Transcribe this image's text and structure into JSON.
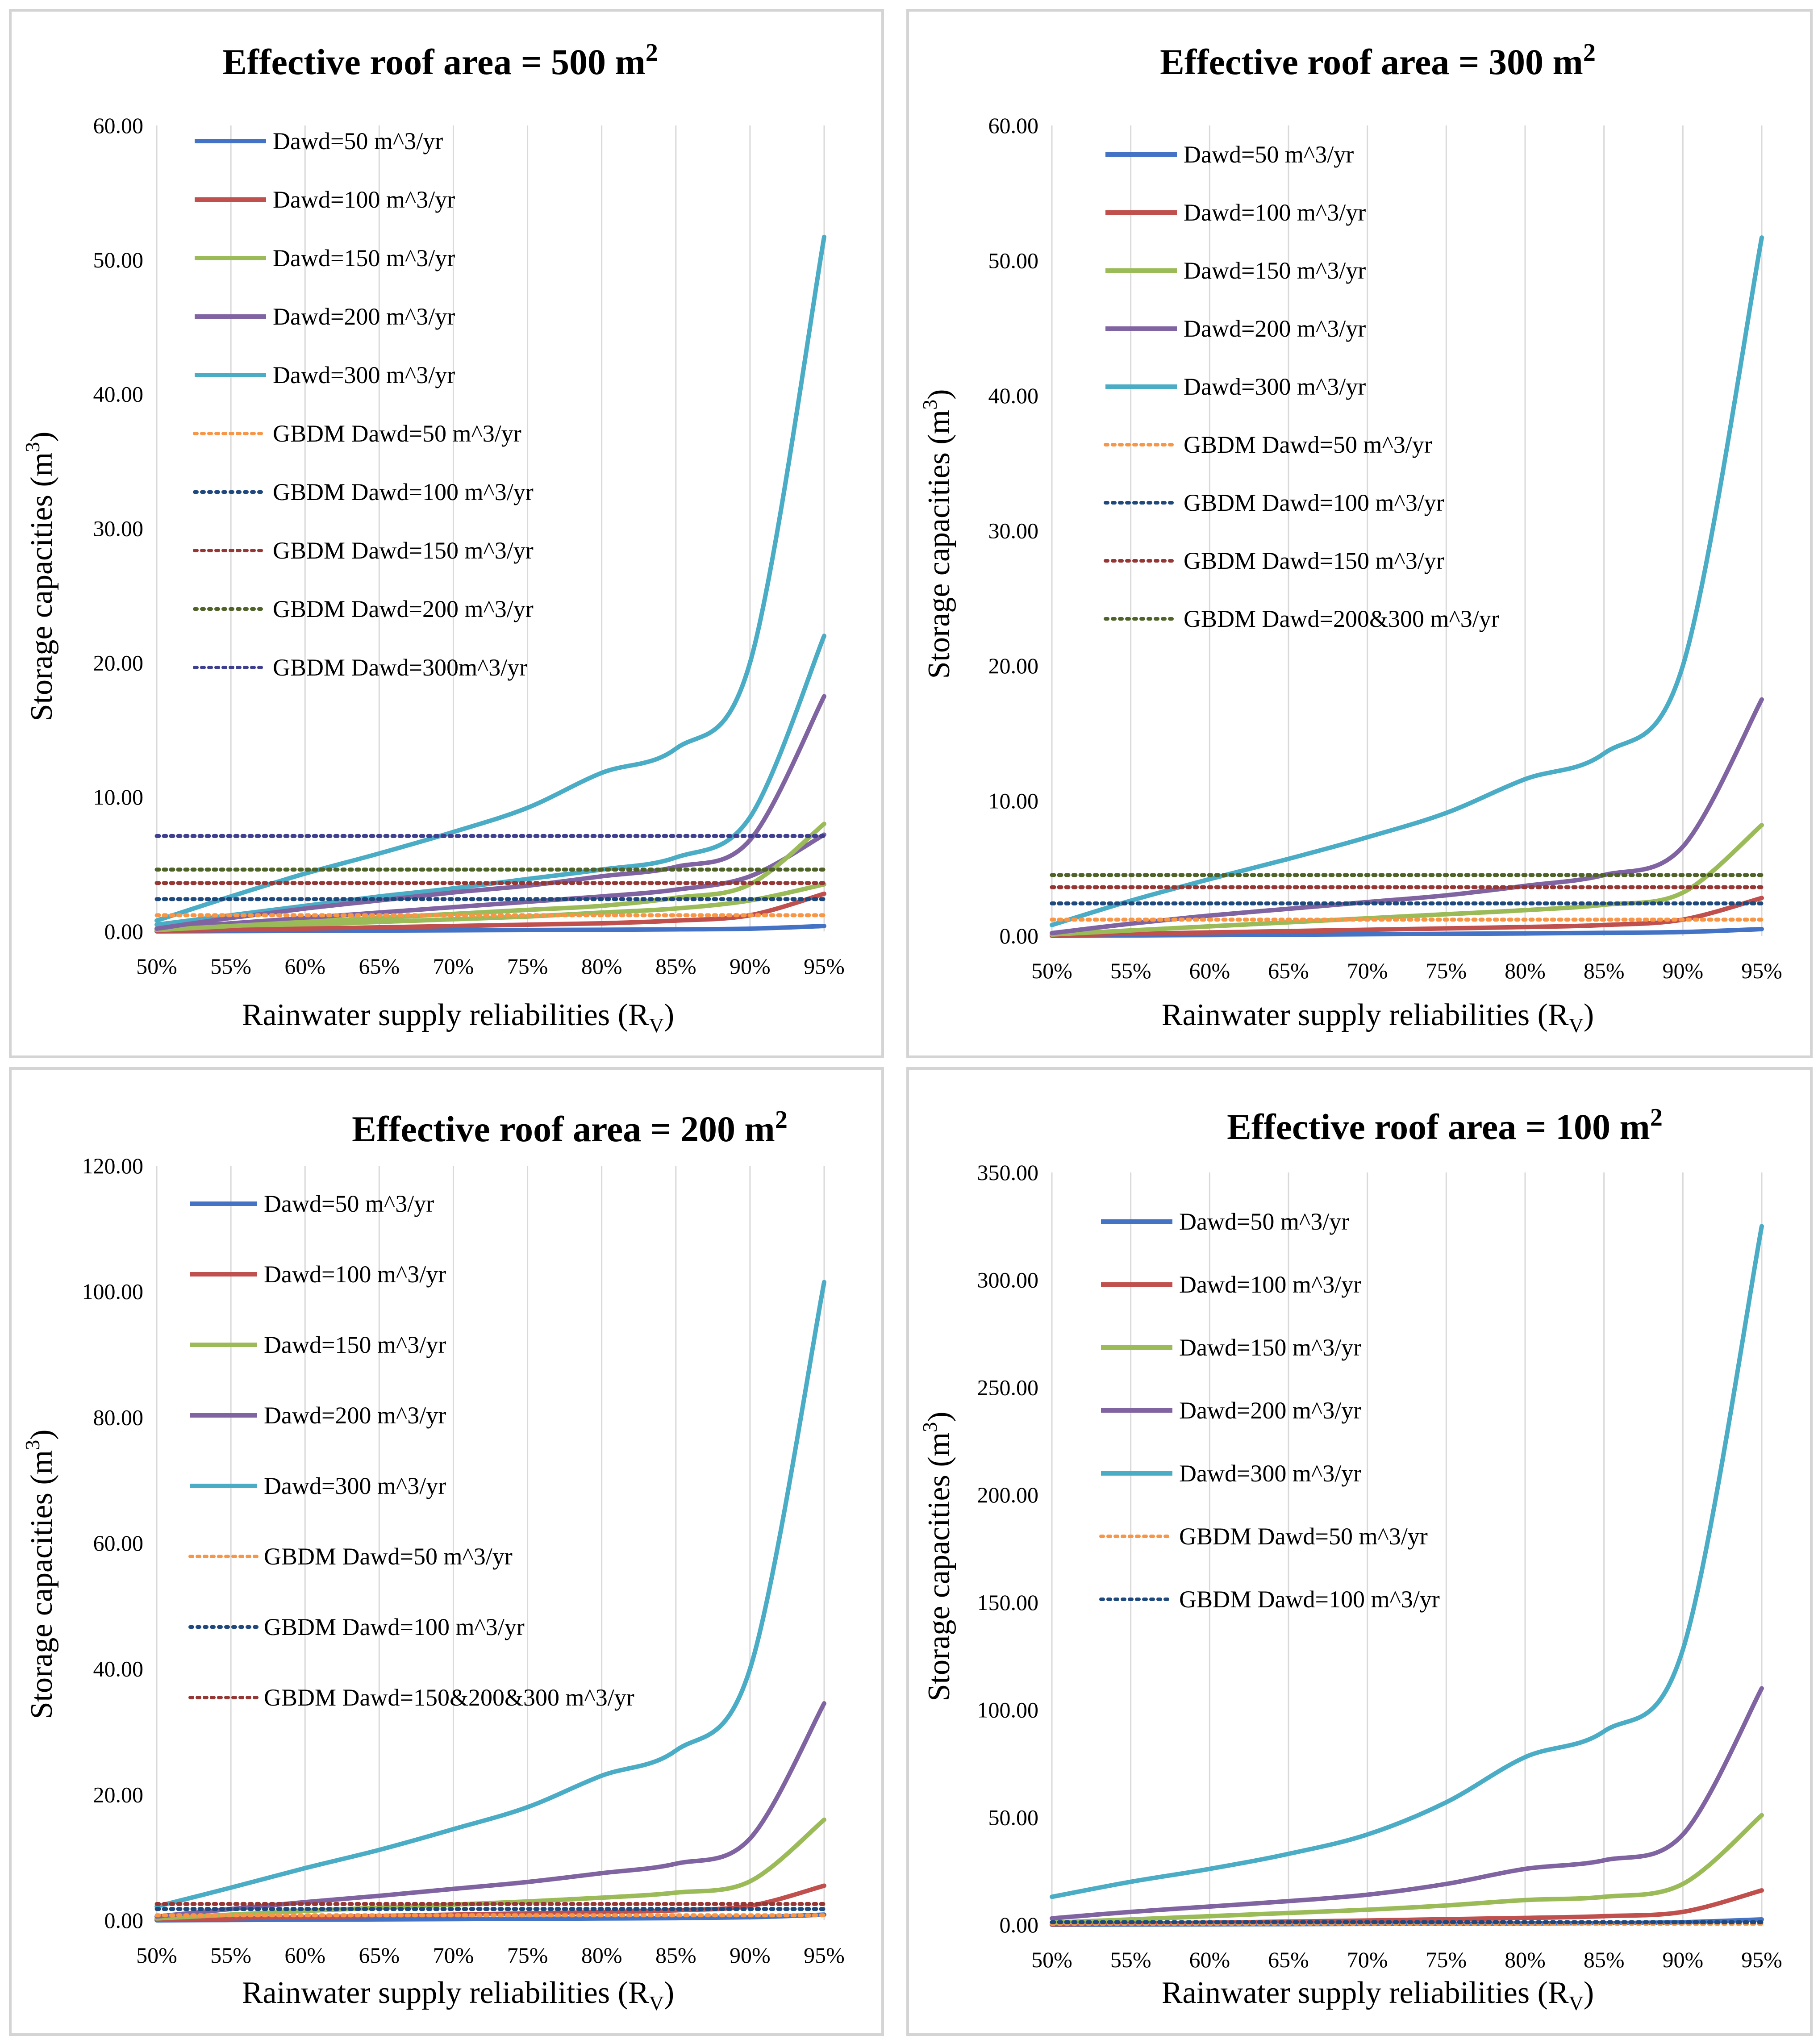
{
  "colors": {
    "d50": "#4472c4",
    "d100": "#c0504d",
    "d150": "#9bbb59",
    "d200": "#8064a2",
    "d300": "#4bacc6",
    "g50": "#f79646",
    "g100": "#1f497d",
    "g150": "#953735",
    "g200": "#4f6228",
    "g300": "#3f3f8f"
  },
  "chart_data": [
    {
      "type": "line",
      "title_main": "Effective roof area = 500 m",
      "title_sup": "2",
      "ylabel_main": "Storage capacities  (m",
      "ylabel_sup": "3",
      "ylabel_end": ")",
      "xlabel_main": "Rainwater supply reliabilities  (R",
      "xlabel_sub": "V",
      "xlabel_end": ")",
      "x": [
        50,
        55,
        60,
        65,
        70,
        75,
        80,
        85,
        90,
        95
      ],
      "xticks": [
        "50%",
        "55%",
        "60%",
        "65%",
        "70%",
        "75%",
        "80%",
        "85%",
        "90%",
        "95%"
      ],
      "ylim": [
        0,
        60
      ],
      "yticks": [
        "0.00",
        "10.00",
        "20.00",
        "30.00",
        "40.00",
        "50.00",
        "60.00"
      ],
      "series": [
        {
          "name": "Dawd=50 m^3/yr",
          "color_key": "d50",
          "dotted": false,
          "values": [
            0.0,
            0.02,
            0.04,
            0.06,
            0.08,
            0.1,
            0.12,
            0.15,
            0.2,
            0.4
          ]
        },
        {
          "name": "Dawd=100 m^3/yr",
          "color_key": "d100",
          "dotted": false,
          "values": [
            0.05,
            0.1,
            0.2,
            0.3,
            0.4,
            0.5,
            0.6,
            0.8,
            1.2,
            2.8
          ]
        },
        {
          "name": "Dawd=150 m^3/yr",
          "color_key": "d150",
          "dotted": false,
          "values": [
            0.1,
            0.4,
            0.7,
            1.0,
            1.3,
            1.6,
            1.9,
            2.5,
            3.5,
            8.0
          ]
        },
        {
          "name": "Dawd=200 m^3/yr",
          "color_key": "d200",
          "dotted": false,
          "values": [
            0.2,
            1.0,
            1.7,
            2.3,
            2.9,
            3.4,
            4.1,
            4.8,
            6.8,
            17.5
          ]
        },
        {
          "name": "Dawd=300 m^3/yr",
          "color_key": "d300",
          "dotted": false,
          "values": [
            0.8,
            2.6,
            4.3,
            5.8,
            7.4,
            9.2,
            11.8,
            13.6,
            20.0,
            51.7
          ]
        },
        {
          "name": "GBDM Dawd=50 m^3/yr",
          "color_key": "g50",
          "dotted": true,
          "values": [
            1.2,
            1.2,
            1.2,
            1.2,
            1.2,
            1.2,
            1.2,
            1.2,
            1.2,
            1.2
          ]
        },
        {
          "name": "GBDM Dawd=100 m^3/yr",
          "color_key": "g100",
          "dotted": true,
          "values": [
            2.4,
            2.4,
            2.4,
            2.4,
            2.4,
            2.4,
            2.4,
            2.4,
            2.4,
            2.4
          ]
        },
        {
          "name": "GBDM Dawd=150 m^3/yr",
          "color_key": "g150",
          "dotted": true,
          "values": [
            3.6,
            3.6,
            3.6,
            3.6,
            3.6,
            3.6,
            3.6,
            3.6,
            3.6,
            3.6
          ]
        },
        {
          "name": "GBDM Dawd=200 m^3/yr",
          "color_key": "g200",
          "dotted": true,
          "values": [
            4.6,
            4.6,
            4.6,
            4.6,
            4.6,
            4.6,
            4.6,
            4.6,
            4.6,
            4.6
          ]
        },
        {
          "name": "GBDM Dawd=300m^3/yr",
          "color_key": "g300",
          "dotted": true,
          "values": [
            7.1,
            7.1,
            7.1,
            7.1,
            7.1,
            7.1,
            7.1,
            7.1,
            7.1,
            7.1
          ]
        }
      ],
      "extra_series": [
        {
          "color_key": "d300",
          "values": [
            0.5,
            1.2,
            1.9,
            2.6,
            3.2,
            3.9,
            4.6,
            5.5,
            8.5,
            22.0
          ]
        },
        {
          "color_key": "d200",
          "values": [
            0.2,
            0.6,
            1.0,
            1.4,
            1.8,
            2.2,
            2.6,
            3.1,
            4.1,
            7.2
          ]
        },
        {
          "color_key": "d150",
          "values": [
            0.1,
            0.3,
            0.5,
            0.7,
            0.9,
            1.1,
            1.4,
            1.7,
            2.3,
            3.5
          ]
        }
      ]
    },
    {
      "type": "line",
      "title_main": "Effective roof area = 300 m",
      "title_sup": "2",
      "ylabel_main": "Storage capacities  (m",
      "ylabel_sup": "3",
      "ylabel_end": ")",
      "xlabel_main": "Rainwater supply reliabilities  (R",
      "xlabel_sub": "V",
      "xlabel_end": ")",
      "x": [
        50,
        55,
        60,
        65,
        70,
        75,
        80,
        85,
        90,
        95
      ],
      "xticks": [
        "50%",
        "55%",
        "60%",
        "65%",
        "70%",
        "75%",
        "80%",
        "85%",
        "90%",
        "95%"
      ],
      "ylim": [
        0,
        60
      ],
      "yticks": [
        "0.00",
        "10.00",
        "20.00",
        "30.00",
        "40.00",
        "50.00",
        "60.00"
      ],
      "series": [
        {
          "name": "Dawd=50 m^3/yr",
          "color_key": "d50",
          "dotted": false,
          "values": [
            0.0,
            0.03,
            0.06,
            0.09,
            0.12,
            0.15,
            0.18,
            0.22,
            0.28,
            0.5
          ]
        },
        {
          "name": "Dawd=100 m^3/yr",
          "color_key": "d100",
          "dotted": false,
          "values": [
            0.05,
            0.15,
            0.25,
            0.35,
            0.45,
            0.55,
            0.65,
            0.8,
            1.2,
            2.8
          ]
        },
        {
          "name": "Dawd=150 m^3/yr",
          "color_key": "d150",
          "dotted": false,
          "values": [
            0.1,
            0.4,
            0.7,
            1.0,
            1.3,
            1.6,
            1.9,
            2.3,
            3.2,
            8.2
          ]
        },
        {
          "name": "Dawd=200 m^3/yr",
          "color_key": "d200",
          "dotted": false,
          "values": [
            0.2,
            0.9,
            1.5,
            2.0,
            2.5,
            3.0,
            3.7,
            4.5,
            6.6,
            17.5
          ]
        },
        {
          "name": "Dawd=300 m^3/yr",
          "color_key": "d300",
          "dotted": false,
          "values": [
            0.8,
            2.6,
            4.2,
            5.7,
            7.3,
            9.1,
            11.6,
            13.5,
            20.0,
            51.7
          ]
        },
        {
          "name": "GBDM Dawd=50 m^3/yr",
          "color_key": "g50",
          "dotted": true,
          "values": [
            1.2,
            1.2,
            1.2,
            1.2,
            1.2,
            1.2,
            1.2,
            1.2,
            1.2,
            1.2
          ]
        },
        {
          "name": "GBDM Dawd=100 m^3/yr",
          "color_key": "g100",
          "dotted": true,
          "values": [
            2.4,
            2.4,
            2.4,
            2.4,
            2.4,
            2.4,
            2.4,
            2.4,
            2.4,
            2.4
          ]
        },
        {
          "name": "GBDM Dawd=150 m^3/yr",
          "color_key": "g150",
          "dotted": true,
          "values": [
            3.6,
            3.6,
            3.6,
            3.6,
            3.6,
            3.6,
            3.6,
            3.6,
            3.6,
            3.6
          ]
        },
        {
          "name": "GBDM Dawd=200&300 m^3/yr",
          "color_key": "g200",
          "dotted": true,
          "values": [
            4.5,
            4.5,
            4.5,
            4.5,
            4.5,
            4.5,
            4.5,
            4.5,
            4.5,
            4.5
          ]
        }
      ]
    },
    {
      "type": "line",
      "title_main": "Effective roof area = 200 m",
      "title_sup": "2",
      "ylabel_main": "Storage capacities  (m",
      "ylabel_sup": "3",
      "ylabel_end": ")",
      "xlabel_main": "Rainwater supply reliabilities  (R",
      "xlabel_sub": "V",
      "xlabel_end": ")",
      "x": [
        50,
        55,
        60,
        65,
        70,
        75,
        80,
        85,
        90,
        95
      ],
      "xticks": [
        "50%",
        "55%",
        "60%",
        "65%",
        "70%",
        "75%",
        "80%",
        "85%",
        "90%",
        "95%"
      ],
      "ylim": [
        0,
        120
      ],
      "yticks": [
        "0.00",
        "20.00",
        "40.00",
        "60.00",
        "80.00",
        "100.00",
        "120.00"
      ],
      "series": [
        {
          "name": "Dawd=50 m^3/yr",
          "color_key": "d50",
          "dotted": false,
          "values": [
            0.0,
            0.05,
            0.1,
            0.15,
            0.2,
            0.25,
            0.3,
            0.35,
            0.5,
            0.9
          ]
        },
        {
          "name": "Dawd=100 m^3/yr",
          "color_key": "d100",
          "dotted": false,
          "values": [
            0.1,
            0.3,
            0.5,
            0.7,
            0.9,
            1.1,
            1.3,
            1.6,
            2.3,
            5.5
          ]
        },
        {
          "name": "Dawd=150 m^3/yr",
          "color_key": "d150",
          "dotted": false,
          "values": [
            0.3,
            0.9,
            1.5,
            2.0,
            2.5,
            3.0,
            3.6,
            4.4,
            6.2,
            16.0
          ]
        },
        {
          "name": "Dawd=200 m^3/yr",
          "color_key": "d200",
          "dotted": false,
          "values": [
            0.6,
            1.8,
            2.9,
            3.9,
            5.0,
            6.1,
            7.5,
            9.0,
            13.0,
            34.5
          ]
        },
        {
          "name": "Dawd=300 m^3/yr",
          "color_key": "d300",
          "dotted": false,
          "values": [
            2.2,
            5.2,
            8.3,
            11.2,
            14.5,
            18.0,
            23.0,
            27.0,
            40.0,
            101.5
          ]
        },
        {
          "name": "GBDM Dawd=50 m^3/yr",
          "color_key": "g50",
          "dotted": true,
          "values": [
            0.8,
            0.8,
            0.8,
            0.8,
            0.8,
            0.8,
            0.8,
            0.8,
            0.8,
            0.8
          ]
        },
        {
          "name": "GBDM Dawd=100 m^3/yr",
          "color_key": "g100",
          "dotted": true,
          "values": [
            1.8,
            1.8,
            1.8,
            1.8,
            1.8,
            1.8,
            1.8,
            1.8,
            1.8,
            1.8
          ]
        },
        {
          "name": "GBDM Dawd=150&200&300 m^3/yr",
          "color_key": "g150",
          "dotted": true,
          "values": [
            2.6,
            2.6,
            2.6,
            2.6,
            2.6,
            2.6,
            2.6,
            2.6,
            2.6,
            2.6
          ]
        }
      ]
    },
    {
      "type": "line",
      "title_main": "Effective roof area = 100 m",
      "title_sup": "2",
      "ylabel_main": "Storage capacities  (m",
      "ylabel_sup": "3",
      "ylabel_end": ")",
      "xlabel_main": "Rainwater supply reliabilities  (R",
      "xlabel_sub": "V",
      "xlabel_end": ")",
      "x": [
        50,
        55,
        60,
        65,
        70,
        75,
        80,
        85,
        90,
        95
      ],
      "xticks": [
        "50%",
        "55%",
        "60%",
        "65%",
        "70%",
        "75%",
        "80%",
        "85%",
        "90%",
        "95%"
      ],
      "ylim": [
        0,
        350
      ],
      "yticks": [
        "0.00",
        "50.00",
        "100.00",
        "150.00",
        "200.00",
        "250.00",
        "300.00",
        "350.00"
      ],
      "series": [
        {
          "name": "Dawd=50 m^3/yr",
          "color_key": "d50",
          "dotted": false,
          "values": [
            0.0,
            0.1,
            0.2,
            0.3,
            0.4,
            0.5,
            0.6,
            0.8,
            1.2,
            2.5
          ]
        },
        {
          "name": "Dawd=100 m^3/yr",
          "color_key": "d100",
          "dotted": false,
          "values": [
            0.2,
            0.6,
            1.0,
            1.5,
            2.0,
            2.6,
            3.2,
            4.0,
            6.0,
            16.0
          ]
        },
        {
          "name": "Dawd=150 m^3/yr",
          "color_key": "d150",
          "dotted": false,
          "values": [
            1.0,
            2.5,
            4.0,
            5.5,
            7.0,
            9.0,
            11.5,
            13.0,
            19.0,
            51.0
          ]
        },
        {
          "name": "Dawd=200 m^3/yr",
          "color_key": "d200",
          "dotted": false,
          "values": [
            3.0,
            6.0,
            8.5,
            11.0,
            14.0,
            19.0,
            26.0,
            30.0,
            42.0,
            110.0
          ]
        },
        {
          "name": "Dawd=300 m^3/yr",
          "color_key": "d300",
          "dotted": false,
          "values": [
            13.0,
            20.0,
            26.0,
            33.0,
            42.0,
            57.0,
            78.0,
            90.0,
            128.0,
            325.0
          ]
        },
        {
          "name": "GBDM Dawd=50 m^3/yr",
          "color_key": "g50",
          "dotted": true,
          "values": [
            0.5,
            0.5,
            0.5,
            0.5,
            0.5,
            0.5,
            0.5,
            0.5,
            0.5,
            0.5
          ]
        },
        {
          "name": "GBDM Dawd=100 m^3/yr",
          "color_key": "g100",
          "dotted": true,
          "values": [
            1.2,
            1.2,
            1.2,
            1.2,
            1.2,
            1.2,
            1.2,
            1.2,
            1.2,
            1.2
          ]
        }
      ]
    }
  ]
}
